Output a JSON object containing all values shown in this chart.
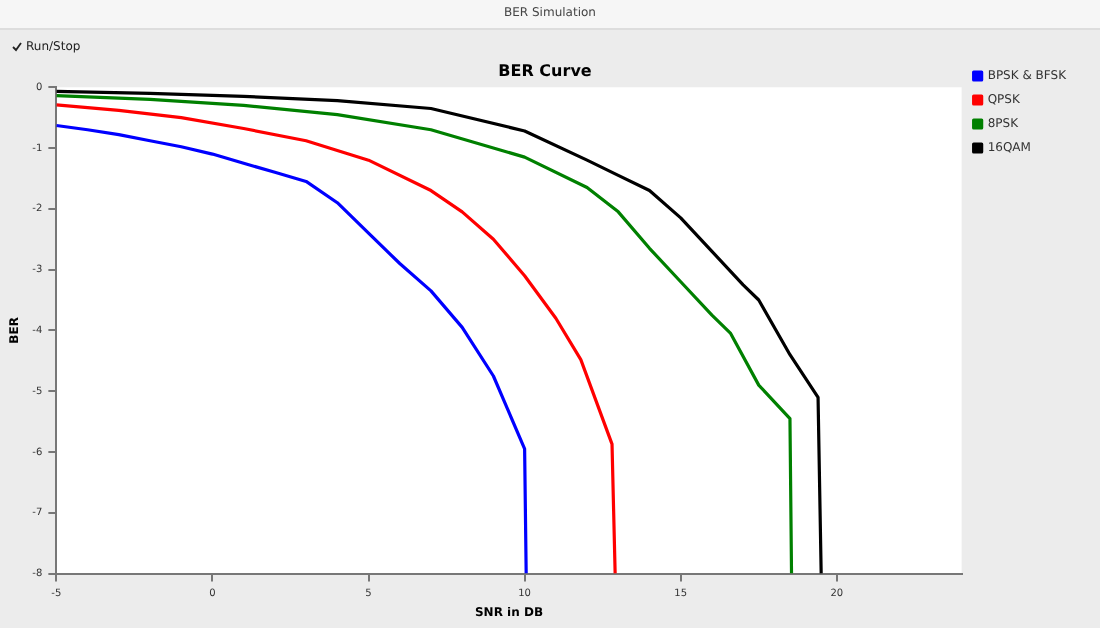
{
  "chart_data": {
    "type": "line",
    "title": "BER Curve",
    "xlabel": "SNR in DB",
    "ylabel": "BER",
    "annotations": [
      "BER Simulation",
      "Run/Stop"
    ],
    "xlim": [
      -5,
      24
    ],
    "xticks": [
      -5,
      0,
      5,
      10,
      15,
      20
    ],
    "ylim": [
      -8,
      0
    ],
    "yticks": [
      0,
      -1,
      -2,
      -3,
      -4,
      -5,
      -6,
      -7,
      -8
    ],
    "grid": false,
    "legend": "top right",
    "marker": "none",
    "line_style": "solid",
    "series": [
      {
        "name": "BPSK & BFSK",
        "color": "#0000ff",
        "x": [
          -5,
          -4,
          -3,
          -2,
          -1,
          0,
          1,
          2,
          3,
          4,
          5,
          6,
          7,
          8,
          9,
          10,
          10.05
        ],
        "values": [
          -0.63,
          -0.7,
          -0.78,
          -0.88,
          -0.98,
          -1.1,
          -1.25,
          -1.4,
          -1.55,
          -1.9,
          -2.4,
          -2.9,
          -3.35,
          -3.95,
          -4.75,
          -5.95,
          -8
        ]
      },
      {
        "name": "QPSK",
        "color": "#ff0000",
        "x": [
          -5,
          -3,
          -1,
          1,
          3,
          5,
          7,
          8,
          9,
          10,
          11,
          11.8,
          12.8,
          12.9
        ],
        "values": [
          -0.29,
          -0.38,
          -0.5,
          -0.68,
          -0.88,
          -1.2,
          -1.7,
          -2.05,
          -2.5,
          -3.1,
          -3.8,
          -4.48,
          -5.87,
          -8
        ]
      },
      {
        "name": "8PSK",
        "color": "#008000",
        "x": [
          -5,
          -2,
          1,
          4,
          7,
          10,
          12,
          13,
          14,
          15,
          16,
          16.6,
          17.5,
          18.5,
          18.55
        ],
        "values": [
          -0.14,
          -0.2,
          -0.3,
          -0.45,
          -0.7,
          -1.15,
          -1.65,
          -2.05,
          -2.65,
          -3.2,
          -3.75,
          -4.05,
          -4.9,
          -5.45,
          -8
        ]
      },
      {
        "name": "16QAM",
        "color": "#000000",
        "x": [
          -5,
          -2,
          1,
          4,
          7,
          10,
          12,
          13,
          14,
          15,
          16,
          17,
          17.5,
          18.5,
          19.4,
          19.5
        ],
        "values": [
          -0.07,
          -0.1,
          -0.15,
          -0.22,
          -0.35,
          -0.72,
          -1.2,
          -1.45,
          -1.7,
          -2.15,
          -2.7,
          -3.25,
          -3.5,
          -4.4,
          -5.1,
          -8
        ]
      }
    ]
  }
}
